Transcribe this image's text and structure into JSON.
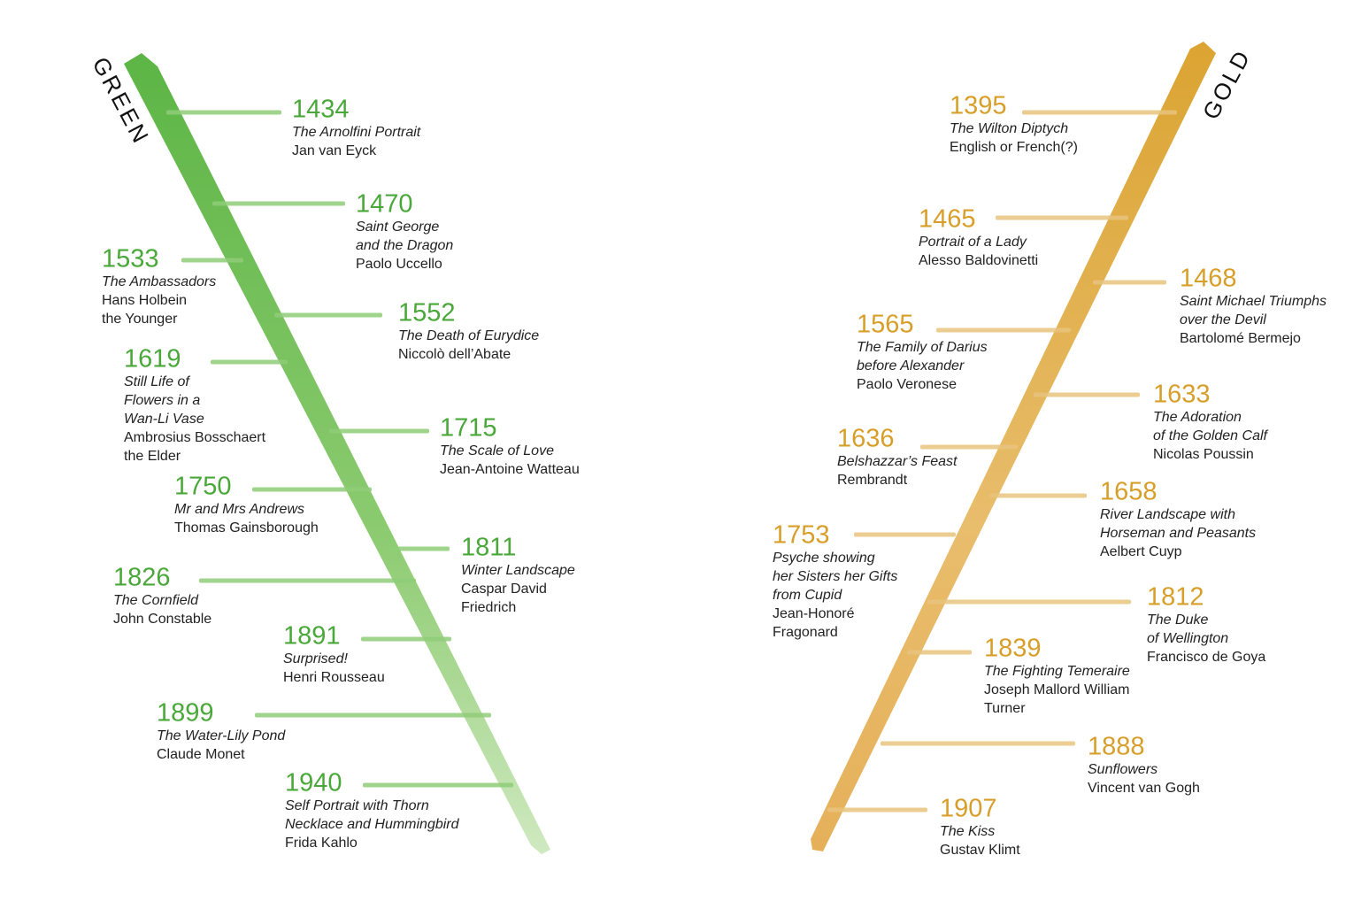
{
  "timelines": [
    {
      "label": "GREEN",
      "entries": [
        {
          "year": 1434,
          "title": [
            "The Arnolfini Portrait"
          ],
          "artist": [
            "Jan van Eyck"
          ]
        },
        {
          "year": 1470,
          "title": [
            "Saint George",
            "and the Dragon"
          ],
          "artist": [
            "Paolo Uccello"
          ]
        },
        {
          "year": 1533,
          "title": [
            "The Ambassadors"
          ],
          "artist": [
            "Hans Holbein",
            "the Younger"
          ]
        },
        {
          "year": 1552,
          "title": [
            "The Death of Eurydice"
          ],
          "artist": [
            "Niccolò dell’Abate"
          ]
        },
        {
          "year": 1619,
          "title": [
            "Still Life of",
            "Flowers in a",
            "Wan-Li Vase"
          ],
          "artist": [
            "Ambrosius Bosschaert",
            "the Elder"
          ]
        },
        {
          "year": 1715,
          "title": [
            "The Scale of Love"
          ],
          "artist": [
            "Jean-Antoine Watteau"
          ]
        },
        {
          "year": 1750,
          "title": [
            "Mr and Mrs Andrews"
          ],
          "artist": [
            "Thomas Gainsborough"
          ]
        },
        {
          "year": 1811,
          "title": [
            "Winter Landscape"
          ],
          "artist": [
            "Caspar David",
            "Friedrich"
          ]
        },
        {
          "year": 1826,
          "title": [
            "The Cornfield"
          ],
          "artist": [
            "John Constable"
          ]
        },
        {
          "year": 1891,
          "title": [
            "Surprised!"
          ],
          "artist": [
            "Henri Rousseau"
          ]
        },
        {
          "year": 1899,
          "title": [
            "The Water-Lily Pond"
          ],
          "artist": [
            "Claude Monet"
          ]
        },
        {
          "year": 1940,
          "title": [
            "Self Portrait with Thorn",
            "Necklace and Hummingbird"
          ],
          "artist": [
            "Frida Kahlo"
          ]
        }
      ]
    },
    {
      "label": "GOLD",
      "entries": [
        {
          "year": 1395,
          "title": [
            "The Wilton Diptych"
          ],
          "artist": [
            "English or French(?)"
          ]
        },
        {
          "year": 1465,
          "title": [
            "Portrait of a Lady"
          ],
          "artist": [
            "Alesso Baldovinetti"
          ]
        },
        {
          "year": 1468,
          "title": [
            "Saint Michael Triumphs",
            "over the Devil"
          ],
          "artist": [
            "Bartolomé Bermejo"
          ]
        },
        {
          "year": 1565,
          "title": [
            "The Family of Darius",
            "before Alexander"
          ],
          "artist": [
            "Paolo Veronese"
          ]
        },
        {
          "year": 1633,
          "title": [
            "The Adoration",
            "of the Golden Calf"
          ],
          "artist": [
            "Nicolas Poussin"
          ]
        },
        {
          "year": 1636,
          "title": [
            "Belshazzar’s Feast"
          ],
          "artist": [
            "Rembrandt"
          ]
        },
        {
          "year": 1658,
          "title": [
            "River Landscape with",
            "Horseman and Peasants"
          ],
          "artist": [
            "Aelbert Cuyp"
          ]
        },
        {
          "year": 1753,
          "title": [
            "Psyche showing",
            "her Sisters her Gifts",
            "from Cupid"
          ],
          "artist": [
            "Jean-Honoré",
            "Fragonard"
          ]
        },
        {
          "year": 1812,
          "title": [
            "The Duke",
            "of Wellington"
          ],
          "artist": [
            "Francisco de Goya"
          ]
        },
        {
          "year": 1839,
          "title": [
            "The Fighting Temeraire"
          ],
          "artist": [
            "Joseph Mallord William",
            "Turner"
          ]
        },
        {
          "year": 1888,
          "title": [
            "Sunflowers"
          ],
          "artist": [
            "Vincent van Gogh"
          ]
        },
        {
          "year": 1907,
          "title": [
            "The Kiss"
          ],
          "artist": [
            "Gustav Klimt"
          ]
        }
      ]
    }
  ]
}
